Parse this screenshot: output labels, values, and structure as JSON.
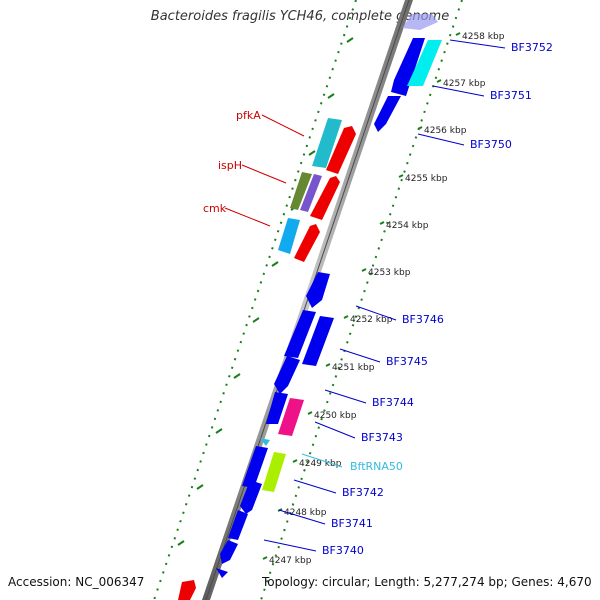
{
  "title": "Bacteroides fragilis YCH46, complete genome",
  "footer": {
    "accession": "Accession: NC_006347",
    "topology": "Topology: circular; Length: 5,277,274 bp; Genes: 4,670"
  },
  "colors": {
    "backbone": "#8c8c8c",
    "ruler": "#1a7f1a",
    "gene_blue": "#0000ee",
    "gene_red": "#ee0000",
    "label_blue": "#0000cc",
    "label_red": "#cc0000",
    "label_cyan": "#33bbdd"
  },
  "kbp_ticks": [
    {
      "label": "4258 kbp"
    },
    {
      "label": "4257 kbp"
    },
    {
      "label": "4256 kbp"
    },
    {
      "label": "4255 kbp"
    },
    {
      "label": "4254 kbp"
    },
    {
      "label": "4253 kbp"
    },
    {
      "label": "4252 kbp"
    },
    {
      "label": "4251 kbp"
    },
    {
      "label": "4250 kbp"
    },
    {
      "label": "4249 kbp"
    },
    {
      "label": "4248 kbp"
    },
    {
      "label": "4247 kbp"
    }
  ],
  "right_genes": [
    {
      "label": "BF3752",
      "color": "#0000cc"
    },
    {
      "label": "BF3751",
      "color": "#0000cc"
    },
    {
      "label": "BF3750",
      "color": "#0000cc"
    },
    {
      "label": "BF3746",
      "color": "#0000cc"
    },
    {
      "label": "BF3745",
      "color": "#0000cc"
    },
    {
      "label": "BF3744",
      "color": "#0000cc"
    },
    {
      "label": "BF3743",
      "color": "#0000cc"
    },
    {
      "label": "BftRNA50",
      "color": "#33bbdd"
    },
    {
      "label": "BF3742",
      "color": "#0000cc"
    },
    {
      "label": "BF3741",
      "color": "#0000cc"
    },
    {
      "label": "BF3740",
      "color": "#0000cc"
    }
  ],
  "left_genes": [
    {
      "label": "pfkA",
      "color": "#cc0000"
    },
    {
      "label": "ispH",
      "color": "#cc0000"
    },
    {
      "label": "cmk",
      "color": "#cc0000"
    }
  ]
}
